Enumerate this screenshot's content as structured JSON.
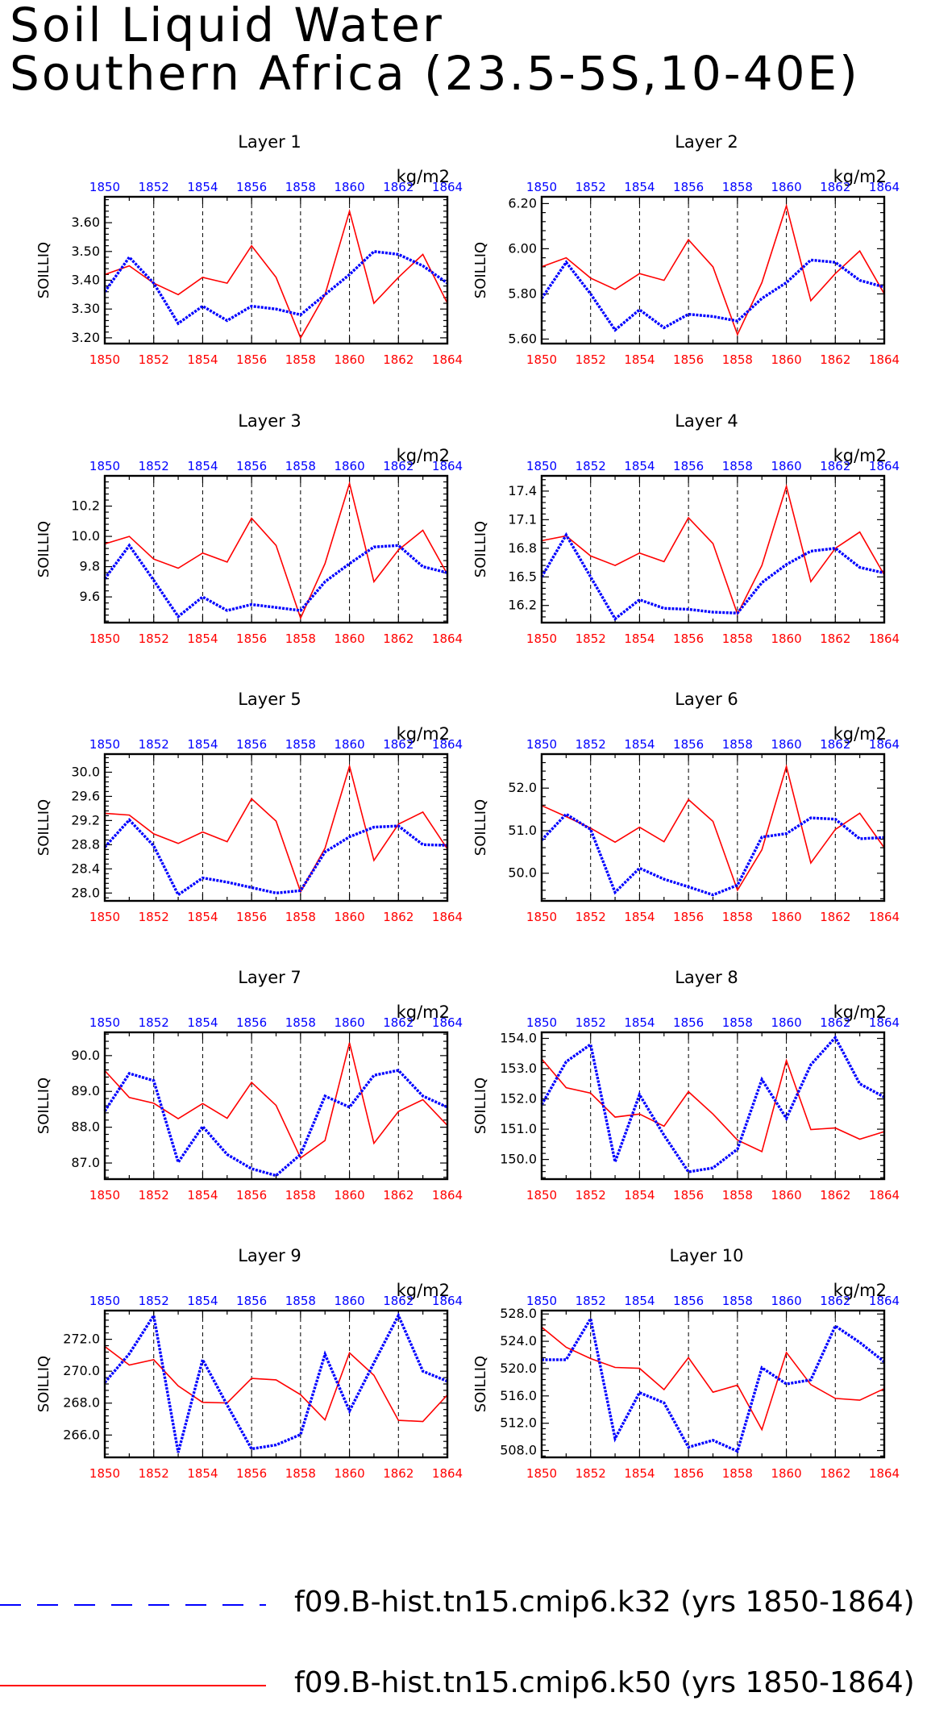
{
  "title_line1": "Soil Liquid Water",
  "title_line2": "Southern Africa (23.5-5S,10-40E)",
  "colors": {
    "series1": "#0000ff",
    "series2": "#ff0000",
    "axis": "#000000"
  },
  "legend": [
    {
      "label": "f09.B-hist.tn15.cmip6.k32 (yrs 1850-1864)",
      "color": "#0000ff",
      "style": "dashed"
    },
    {
      "label": "f09.B-hist.tn15.cmip6.k50 (yrs 1850-1864)",
      "color": "#ff0000",
      "style": "solid"
    }
  ],
  "chart_data": [
    {
      "type": "line",
      "title": "Layer 1",
      "ylabel": "SOILLIQ",
      "units": "kg/m2",
      "x": [
        1850,
        1851,
        1852,
        1853,
        1854,
        1855,
        1856,
        1857,
        1858,
        1859,
        1860,
        1861,
        1862,
        1863,
        1864
      ],
      "xticks": [
        1850,
        1852,
        1854,
        1856,
        1858,
        1860,
        1862,
        1864
      ],
      "ylim": [
        3.18,
        3.69
      ],
      "yticks": [
        3.2,
        3.3,
        3.4,
        3.5,
        3.6
      ],
      "ydecimals": 2,
      "series": [
        {
          "name": "f09.B-hist.tn15.cmip6.k32",
          "values": [
            3.36,
            3.48,
            3.39,
            3.25,
            3.31,
            3.26,
            3.31,
            3.3,
            3.28,
            3.35,
            3.42,
            3.5,
            3.49,
            3.45,
            3.39
          ]
        },
        {
          "name": "f09.B-hist.tn15.cmip6.k50",
          "values": [
            3.42,
            3.45,
            3.39,
            3.35,
            3.41,
            3.39,
            3.52,
            3.41,
            3.2,
            3.35,
            3.64,
            3.32,
            3.41,
            3.49,
            3.32
          ]
        }
      ]
    },
    {
      "type": "line",
      "title": "Layer 2",
      "ylabel": "SOILLIQ",
      "units": "kg/m2",
      "x": [
        1850,
        1851,
        1852,
        1853,
        1854,
        1855,
        1856,
        1857,
        1858,
        1859,
        1860,
        1861,
        1862,
        1863,
        1864
      ],
      "xticks": [
        1850,
        1852,
        1854,
        1856,
        1858,
        1860,
        1862,
        1864
      ],
      "ylim": [
        5.58,
        6.23
      ],
      "yticks": [
        5.6,
        5.8,
        6.0,
        6.2
      ],
      "ydecimals": 2,
      "series": [
        {
          "name": "f09.B-hist.tn15.cmip6.k32",
          "values": [
            5.78,
            5.94,
            5.8,
            5.64,
            5.73,
            5.65,
            5.71,
            5.7,
            5.68,
            5.78,
            5.85,
            5.95,
            5.94,
            5.86,
            5.83
          ]
        },
        {
          "name": "f09.B-hist.tn15.cmip6.k50",
          "values": [
            5.92,
            5.96,
            5.87,
            5.82,
            5.89,
            5.86,
            6.04,
            5.92,
            5.62,
            5.85,
            6.19,
            5.77,
            5.89,
            5.99,
            5.8
          ]
        }
      ]
    },
    {
      "type": "line",
      "title": "Layer 3",
      "ylabel": "SOILLIQ",
      "units": "kg/m2",
      "x": [
        1850,
        1851,
        1852,
        1853,
        1854,
        1855,
        1856,
        1857,
        1858,
        1859,
        1860,
        1861,
        1862,
        1863,
        1864
      ],
      "xticks": [
        1850,
        1852,
        1854,
        1856,
        1858,
        1860,
        1862,
        1864
      ],
      "ylim": [
        9.43,
        10.4
      ],
      "yticks": [
        9.6,
        9.8,
        10.0,
        10.2
      ],
      "ydecimals": 1,
      "series": [
        {
          "name": "f09.B-hist.tn15.cmip6.k32",
          "values": [
            9.72,
            9.94,
            9.71,
            9.47,
            9.6,
            9.51,
            9.55,
            9.53,
            9.51,
            9.7,
            9.82,
            9.93,
            9.94,
            9.8,
            9.76
          ]
        },
        {
          "name": "f09.B-hist.tn15.cmip6.k50",
          "values": [
            9.95,
            10.0,
            9.85,
            9.79,
            9.89,
            9.83,
            10.12,
            9.94,
            9.46,
            9.82,
            10.35,
            9.7,
            9.91,
            10.04,
            9.75
          ]
        }
      ]
    },
    {
      "type": "line",
      "title": "Layer 4",
      "ylabel": "SOILLIQ",
      "units": "kg/m2",
      "x": [
        1850,
        1851,
        1852,
        1853,
        1854,
        1855,
        1856,
        1857,
        1858,
        1859,
        1860,
        1861,
        1862,
        1863,
        1864
      ],
      "xticks": [
        1850,
        1852,
        1854,
        1856,
        1858,
        1860,
        1862,
        1864
      ],
      "ylim": [
        16.02,
        17.56
      ],
      "yticks": [
        16.2,
        16.5,
        16.8,
        17.1,
        17.4
      ],
      "ydecimals": 1,
      "series": [
        {
          "name": "f09.B-hist.tn15.cmip6.k32",
          "values": [
            16.5,
            16.94,
            16.5,
            16.06,
            16.26,
            16.17,
            16.16,
            16.13,
            16.12,
            16.44,
            16.63,
            16.77,
            16.8,
            16.6,
            16.54
          ]
        },
        {
          "name": "f09.B-hist.tn15.cmip6.k50",
          "values": [
            16.88,
            16.93,
            16.72,
            16.62,
            16.75,
            16.66,
            17.12,
            16.85,
            16.11,
            16.62,
            17.45,
            16.45,
            16.8,
            16.97,
            16.52
          ]
        }
      ]
    },
    {
      "type": "line",
      "title": "Layer 5",
      "ylabel": "SOILLIQ",
      "units": "kg/m2",
      "x": [
        1850,
        1851,
        1852,
        1853,
        1854,
        1855,
        1856,
        1857,
        1858,
        1859,
        1860,
        1861,
        1862,
        1863,
        1864
      ],
      "xticks": [
        1850,
        1852,
        1854,
        1856,
        1858,
        1860,
        1862,
        1864
      ],
      "ylim": [
        27.87,
        30.3
      ],
      "yticks": [
        28.0,
        28.4,
        28.8,
        29.2,
        29.6,
        30.0
      ],
      "ydecimals": 1,
      "series": [
        {
          "name": "f09.B-hist.tn15.cmip6.k32",
          "values": [
            28.76,
            29.21,
            28.78,
            27.97,
            28.25,
            28.18,
            28.09,
            28.0,
            28.04,
            28.68,
            28.93,
            29.09,
            29.11,
            28.8,
            28.79
          ]
        },
        {
          "name": "f09.B-hist.tn15.cmip6.k50",
          "values": [
            29.32,
            29.29,
            28.98,
            28.82,
            29.01,
            28.85,
            29.56,
            29.19,
            28.02,
            28.74,
            30.1,
            28.54,
            29.14,
            29.34,
            28.73
          ]
        }
      ]
    },
    {
      "type": "line",
      "title": "Layer 6",
      "ylabel": "SOILLIQ",
      "units": "kg/m2",
      "x": [
        1850,
        1851,
        1852,
        1853,
        1854,
        1855,
        1856,
        1857,
        1858,
        1859,
        1860,
        1861,
        1862,
        1863,
        1864
      ],
      "xticks": [
        1850,
        1852,
        1854,
        1856,
        1858,
        1860,
        1862,
        1864
      ],
      "ylim": [
        49.35,
        52.8
      ],
      "yticks": [
        50.0,
        51.0,
        52.0
      ],
      "ydecimals": 1,
      "series": [
        {
          "name": "f09.B-hist.tn15.cmip6.k32",
          "values": [
            50.78,
            51.39,
            51.03,
            49.55,
            50.12,
            49.86,
            49.68,
            49.49,
            49.72,
            50.85,
            50.93,
            51.3,
            51.27,
            50.81,
            50.84
          ]
        },
        {
          "name": "f09.B-hist.tn15.cmip6.k50",
          "values": [
            51.59,
            51.33,
            51.06,
            50.73,
            51.08,
            50.74,
            51.73,
            51.22,
            49.6,
            50.55,
            52.51,
            50.24,
            51.03,
            51.41,
            50.6
          ]
        }
      ]
    },
    {
      "type": "line",
      "title": "Layer 7",
      "ylabel": "SOILLIQ",
      "units": "kg/m2",
      "x": [
        1850,
        1851,
        1852,
        1853,
        1854,
        1855,
        1856,
        1857,
        1858,
        1859,
        1860,
        1861,
        1862,
        1863,
        1864
      ],
      "xticks": [
        1850,
        1852,
        1854,
        1856,
        1858,
        1860,
        1862,
        1864
      ],
      "ylim": [
        86.55,
        90.65
      ],
      "yticks": [
        87.0,
        88.0,
        89.0,
        90.0
      ],
      "ydecimals": 1,
      "series": [
        {
          "name": "f09.B-hist.tn15.cmip6.k32",
          "values": [
            88.45,
            89.5,
            89.3,
            87.02,
            88.02,
            87.24,
            86.84,
            86.65,
            87.24,
            88.87,
            88.56,
            89.45,
            89.59,
            88.87,
            88.56
          ]
        },
        {
          "name": "f09.B-hist.tn15.cmip6.k50",
          "values": [
            89.58,
            88.83,
            88.67,
            88.24,
            88.66,
            88.25,
            89.25,
            88.61,
            87.14,
            87.63,
            90.36,
            87.55,
            88.44,
            88.77,
            88.05
          ]
        }
      ]
    },
    {
      "type": "line",
      "title": "Layer 8",
      "ylabel": "SOILLIQ",
      "units": "kg/m2",
      "x": [
        1850,
        1851,
        1852,
        1853,
        1854,
        1855,
        1856,
        1857,
        1858,
        1859,
        1860,
        1861,
        1862,
        1863,
        1864
      ],
      "xticks": [
        1850,
        1852,
        1854,
        1856,
        1858,
        1860,
        1862,
        1864
      ],
      "ylim": [
        149.35,
        154.2
      ],
      "yticks": [
        150.0,
        151.0,
        152.0,
        153.0,
        154.0
      ],
      "ydecimals": 1,
      "series": [
        {
          "name": "f09.B-hist.tn15.cmip6.k32",
          "values": [
            151.81,
            153.23,
            153.8,
            149.92,
            152.14,
            150.8,
            149.59,
            149.72,
            150.34,
            152.64,
            151.36,
            153.13,
            154.03,
            152.5,
            152.06
          ]
        },
        {
          "name": "f09.B-hist.tn15.cmip6.k50",
          "values": [
            153.32,
            152.37,
            152.19,
            151.4,
            151.5,
            151.1,
            152.24,
            151.5,
            150.64,
            150.26,
            153.27,
            150.99,
            151.04,
            150.67,
            150.92
          ]
        }
      ]
    },
    {
      "type": "line",
      "title": "Layer 9",
      "ylabel": "SOILLIQ",
      "units": "kg/m2",
      "x": [
        1850,
        1851,
        1852,
        1853,
        1854,
        1855,
        1856,
        1857,
        1858,
        1859,
        1860,
        1861,
        1862,
        1863,
        1864
      ],
      "xticks": [
        1850,
        1852,
        1854,
        1856,
        1858,
        1860,
        1862,
        1864
      ],
      "ylim": [
        264.6,
        273.8
      ],
      "yticks": [
        266.0,
        268.0,
        270.0,
        272.0
      ],
      "ydecimals": 1,
      "series": [
        {
          "name": "f09.B-hist.tn15.cmip6.k32",
          "values": [
            269.29,
            271.09,
            273.49,
            264.91,
            270.72,
            267.88,
            265.13,
            265.38,
            266.03,
            271.06,
            267.51,
            270.52,
            273.49,
            270.0,
            269.37
          ]
        },
        {
          "name": "f09.B-hist.tn15.cmip6.k50",
          "values": [
            271.55,
            270.39,
            270.72,
            269.08,
            268.05,
            268.01,
            269.55,
            269.46,
            268.53,
            266.95,
            271.15,
            269.74,
            266.92,
            266.85,
            268.52
          ]
        }
      ]
    },
    {
      "type": "line",
      "title": "Layer 10",
      "ylabel": "SOILLIQ",
      "units": "kg/m2",
      "x": [
        1850,
        1851,
        1852,
        1853,
        1854,
        1855,
        1856,
        1857,
        1858,
        1859,
        1860,
        1861,
        1862,
        1863,
        1864
      ],
      "xticks": [
        1850,
        1852,
        1854,
        1856,
        1858,
        1860,
        1862,
        1864
      ],
      "ylim": [
        507.0,
        528.5
      ],
      "yticks": [
        508.0,
        512.0,
        516.0,
        520.0,
        524.0,
        528.0
      ],
      "ydecimals": 1,
      "series": [
        {
          "name": "f09.B-hist.tn15.cmip6.k32",
          "values": [
            521.3,
            521.3,
            527.32,
            509.76,
            516.49,
            514.99,
            508.49,
            509.5,
            507.9,
            520.13,
            517.75,
            518.35,
            526.24,
            523.83,
            521.0
          ]
        },
        {
          "name": "f09.B-hist.tn15.cmip6.k50",
          "values": [
            526.08,
            523.13,
            521.47,
            520.17,
            520.04,
            516.92,
            521.6,
            516.55,
            517.57,
            511.06,
            522.37,
            517.65,
            515.64,
            515.38,
            517.06
          ]
        }
      ]
    }
  ]
}
